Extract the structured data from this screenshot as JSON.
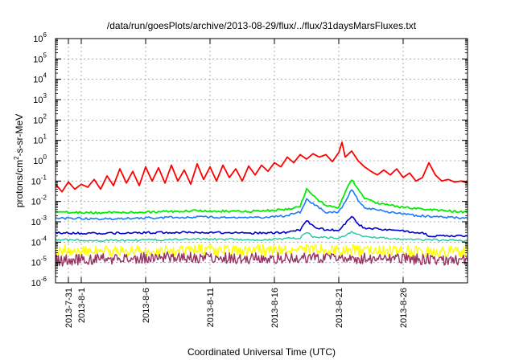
{
  "chart_data": {
    "type": "line",
    "title": "/data/run/goesPlots/archive/2013-08-29/flux/../flux/31daysMarsFluxes.txt",
    "xlabel": "Coordinated Universal Time (UTC)",
    "ylabel": {
      "base": "protons/cm",
      "sup": "2",
      "rest": "-s-sr-MeV"
    },
    "yscale": "log",
    "ylim": [
      1e-06,
      1000000.0
    ],
    "xlim": [
      "2013-07-30",
      "2013-08-31"
    ],
    "grid": true,
    "y_ticks": [
      {
        "base": "10",
        "exp": "-6",
        "value": 1e-06
      },
      {
        "base": "10",
        "exp": "-5",
        "value": 1e-05
      },
      {
        "base": "10",
        "exp": "-4",
        "value": 0.0001
      },
      {
        "base": "10",
        "exp": "-3",
        "value": 0.001
      },
      {
        "base": "10",
        "exp": "-2",
        "value": 0.01
      },
      {
        "base": "10",
        "exp": "-1",
        "value": 0.1
      },
      {
        "base": "10",
        "exp": "0",
        "value": 1
      },
      {
        "base": "10",
        "exp": "1",
        "value": 10.0
      },
      {
        "base": "10",
        "exp": "2",
        "value": 100.0
      },
      {
        "base": "10",
        "exp": "3",
        "value": 1000.0
      },
      {
        "base": "10",
        "exp": "4",
        "value": 10000.0
      },
      {
        "base": "10",
        "exp": "5",
        "value": 100000.0
      },
      {
        "base": "10",
        "exp": "6",
        "value": 1000000.0
      }
    ],
    "x_ticks": [
      {
        "label": "2013-7-31",
        "date": "2013-07-31"
      },
      {
        "label": "2013-8-1",
        "date": "2013-08-01"
      },
      {
        "label": "2013-8-6",
        "date": "2013-08-06"
      },
      {
        "label": "2013-8-11",
        "date": "2013-08-11"
      },
      {
        "label": "2013-8-16",
        "date": "2013-08-16"
      },
      {
        "label": "2013-8-21",
        "date": "2013-08-21"
      },
      {
        "label": "2013-8-26",
        "date": "2013-08-26"
      }
    ],
    "series": [
      {
        "color": "#ff0000",
        "width": 1.8,
        "points": [
          [
            "2013-07-30",
            0.07
          ],
          [
            "2013-07-30T12",
            0.03
          ],
          [
            "2013-07-31",
            0.09
          ],
          [
            "2013-07-31T12",
            0.04
          ],
          [
            "2013-08-01",
            0.07
          ],
          [
            "2013-08-01T12",
            0.05
          ],
          [
            "2013-08-02",
            0.12
          ],
          [
            "2013-08-02T12",
            0.04
          ],
          [
            "2013-08-03",
            0.18
          ],
          [
            "2013-08-03T12",
            0.06
          ],
          [
            "2013-08-04",
            0.4
          ],
          [
            "2013-08-04T12",
            0.08
          ],
          [
            "2013-08-05",
            0.3
          ],
          [
            "2013-08-05T12",
            0.06
          ],
          [
            "2013-08-06",
            0.5
          ],
          [
            "2013-08-06T12",
            0.1
          ],
          [
            "2013-08-07",
            0.45
          ],
          [
            "2013-08-07T12",
            0.08
          ],
          [
            "2013-08-08",
            0.6
          ],
          [
            "2013-08-08T12",
            0.1
          ],
          [
            "2013-08-09",
            0.35
          ],
          [
            "2013-08-09T12",
            0.07
          ],
          [
            "2013-08-10",
            0.7
          ],
          [
            "2013-08-10T12",
            0.12
          ],
          [
            "2013-08-11",
            0.5
          ],
          [
            "2013-08-11T12",
            0.1
          ],
          [
            "2013-08-12",
            0.6
          ],
          [
            "2013-08-12T12",
            0.15
          ],
          [
            "2013-08-13",
            0.4
          ],
          [
            "2013-08-13T12",
            0.1
          ],
          [
            "2013-08-14",
            0.55
          ],
          [
            "2013-08-14T12",
            0.2
          ],
          [
            "2013-08-15",
            0.6
          ],
          [
            "2013-08-15T12",
            0.3
          ],
          [
            "2013-08-16",
            0.8
          ],
          [
            "2013-08-16T12",
            0.5
          ],
          [
            "2013-08-17",
            1.5
          ],
          [
            "2013-08-17T12",
            0.8
          ],
          [
            "2013-08-18",
            2.0
          ],
          [
            "2013-08-18T12",
            1.2
          ],
          [
            "2013-08-19",
            2.2
          ],
          [
            "2013-08-19T12",
            1.5
          ],
          [
            "2013-08-20",
            2.0
          ],
          [
            "2013-08-20T12",
            0.9
          ],
          [
            "2013-08-21",
            2.5
          ],
          [
            "2013-08-21T06",
            8.0
          ],
          [
            "2013-08-21T12",
            1.5
          ],
          [
            "2013-08-22",
            3.0
          ],
          [
            "2013-08-22T12",
            1.0
          ],
          [
            "2013-08-23",
            0.5
          ],
          [
            "2013-08-23T12",
            0.3
          ],
          [
            "2013-08-24",
            0.2
          ],
          [
            "2013-08-24T12",
            0.35
          ],
          [
            "2013-08-25",
            0.2
          ],
          [
            "2013-08-25T12",
            0.4
          ],
          [
            "2013-08-26",
            0.15
          ],
          [
            "2013-08-26T12",
            0.25
          ],
          [
            "2013-08-27",
            0.1
          ],
          [
            "2013-08-27T12",
            0.15
          ],
          [
            "2013-08-28",
            0.8
          ],
          [
            "2013-08-28T12",
            0.2
          ],
          [
            "2013-08-29",
            0.1
          ],
          [
            "2013-08-29T12",
            0.12
          ],
          [
            "2013-08-30",
            0.09
          ],
          [
            "2013-08-30T12",
            0.1
          ],
          [
            "2013-08-31",
            0.08
          ]
        ]
      },
      {
        "color": "#00ee00",
        "width": 1.8,
        "points": [
          [
            "2013-07-30",
            0.003
          ],
          [
            "2013-08-02",
            0.0028
          ],
          [
            "2013-08-06",
            0.003
          ],
          [
            "2013-08-10",
            0.0035
          ],
          [
            "2013-08-14",
            0.0032
          ],
          [
            "2013-08-17",
            0.004
          ],
          [
            "2013-08-18",
            0.006
          ],
          [
            "2013-08-18T12",
            0.04
          ],
          [
            "2013-08-19",
            0.02
          ],
          [
            "2013-08-20",
            0.006
          ],
          [
            "2013-08-21",
            0.005
          ],
          [
            "2013-08-21T12",
            0.03
          ],
          [
            "2013-08-22",
            0.12
          ],
          [
            "2013-08-22T12",
            0.04
          ],
          [
            "2013-08-23",
            0.015
          ],
          [
            "2013-08-24",
            0.008
          ],
          [
            "2013-08-26",
            0.005
          ],
          [
            "2013-08-28",
            0.004
          ],
          [
            "2013-08-31",
            0.003
          ]
        ]
      },
      {
        "color": "#1a7bff",
        "width": 1.6,
        "points": [
          [
            "2013-07-30",
            0.0015
          ],
          [
            "2013-08-03",
            0.0014
          ],
          [
            "2013-08-07",
            0.0016
          ],
          [
            "2013-08-11",
            0.0017
          ],
          [
            "2013-08-15",
            0.0016
          ],
          [
            "2013-08-17",
            0.002
          ],
          [
            "2013-08-18",
            0.003
          ],
          [
            "2013-08-18T12",
            0.012
          ],
          [
            "2013-08-19",
            0.008
          ],
          [
            "2013-08-20",
            0.003
          ],
          [
            "2013-08-21",
            0.003
          ],
          [
            "2013-08-21T12",
            0.01
          ],
          [
            "2013-08-22",
            0.04
          ],
          [
            "2013-08-22T12",
            0.012
          ],
          [
            "2013-08-23",
            0.005
          ],
          [
            "2013-08-25",
            0.003
          ],
          [
            "2013-08-27",
            0.002
          ],
          [
            "2013-08-31",
            0.0015
          ]
        ]
      },
      {
        "color": "#0000cc",
        "width": 1.6,
        "points": [
          [
            "2013-07-30",
            0.00028
          ],
          [
            "2013-08-03",
            0.00027
          ],
          [
            "2013-08-07",
            0.0003
          ],
          [
            "2013-08-11",
            0.0003
          ],
          [
            "2013-08-15",
            0.00028
          ],
          [
            "2013-08-17",
            0.0003
          ],
          [
            "2013-08-18",
            0.0004
          ],
          [
            "2013-08-18T12",
            0.0012
          ],
          [
            "2013-08-19",
            0.0006
          ],
          [
            "2013-08-20",
            0.0004
          ],
          [
            "2013-08-21",
            0.0004
          ],
          [
            "2013-08-21T12",
            0.0008
          ],
          [
            "2013-08-22",
            0.002
          ],
          [
            "2013-08-22T12",
            0.0008
          ],
          [
            "2013-08-23",
            0.0005
          ],
          [
            "2013-08-25",
            0.0004
          ],
          [
            "2013-08-27",
            0.0003
          ],
          [
            "2013-08-27T12",
            0.0003
          ],
          [
            "2013-08-28",
            0.0002
          ],
          [
            "2013-08-31",
            0.0002
          ]
        ]
      },
      {
        "color": "#20c8a0",
        "width": 1.4,
        "points": [
          [
            "2013-07-30",
            0.00013
          ],
          [
            "2013-08-03",
            0.00012
          ],
          [
            "2013-08-07",
            0.00013
          ],
          [
            "2013-08-11",
            0.00014
          ],
          [
            "2013-08-15",
            0.00013
          ],
          [
            "2013-08-18",
            0.00016
          ],
          [
            "2013-08-18T12",
            0.0003
          ],
          [
            "2013-08-19",
            0.00018
          ],
          [
            "2013-08-21",
            0.00016
          ],
          [
            "2013-08-22",
            0.0003
          ],
          [
            "2013-08-23",
            0.00018
          ],
          [
            "2013-08-26",
            0.00014
          ],
          [
            "2013-08-31",
            0.00012
          ]
        ]
      },
      {
        "color": "#ffff00",
        "width": 1.4,
        "points": [
          [
            "2013-07-30",
            4e-05
          ],
          [
            "2013-08-04",
            3.5e-05
          ],
          [
            "2013-08-08",
            4e-05
          ],
          [
            "2013-08-12",
            3.8e-05
          ],
          [
            "2013-08-16",
            4e-05
          ],
          [
            "2013-08-20",
            4.2e-05
          ],
          [
            "2013-08-24",
            3.8e-05
          ],
          [
            "2013-08-28",
            3.6e-05
          ],
          [
            "2013-08-31",
            3.5e-05
          ]
        ]
      },
      {
        "color": "#993366",
        "width": 1.4,
        "points": [
          [
            "2013-07-30",
            1.2e-05
          ],
          [
            "2013-08-03",
            1.5e-05
          ],
          [
            "2013-08-07",
            1.8e-05
          ],
          [
            "2013-08-11",
            1.7e-05
          ],
          [
            "2013-08-15",
            1.6e-05
          ],
          [
            "2013-08-19",
            1.8e-05
          ],
          [
            "2013-08-23",
            1.6e-05
          ],
          [
            "2013-08-27",
            1.5e-05
          ],
          [
            "2013-08-31",
            1.2e-05
          ]
        ]
      }
    ]
  }
}
